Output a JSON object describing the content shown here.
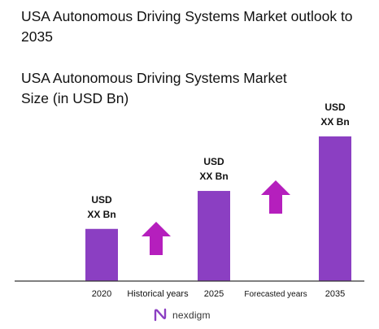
{
  "header": {
    "title": "USA Autonomous Driving Systems Market outlook to 2035",
    "subtitle": "USA Autonomous Driving Systems Market Size (in USD Bn)"
  },
  "colors": {
    "bar": "#8b3fc2",
    "arrow": "#b51fbd",
    "axis": "#333333"
  },
  "chart_data": {
    "type": "bar",
    "title": "USA Autonomous Driving Systems Market Size (in USD Bn)",
    "categories": [
      "2020",
      "2025",
      "2035"
    ],
    "values": [
      0.22,
      0.38,
      0.61
    ],
    "value_labels": [
      [
        "USD",
        "XX Bn"
      ],
      [
        "USD",
        "XX Bn"
      ],
      [
        "USD",
        "XX Bn"
      ]
    ],
    "period_labels": [
      "Historical years",
      "Forecasted years"
    ],
    "trend_arrows": [
      "up",
      "up"
    ],
    "xlabel": "",
    "ylabel": "",
    "ylim": [
      0,
      1
    ],
    "grid": false,
    "legend": "none"
  },
  "footer": {
    "brand_name": "nexdigm",
    "brand_icon": "nexdigm-logo-icon"
  }
}
